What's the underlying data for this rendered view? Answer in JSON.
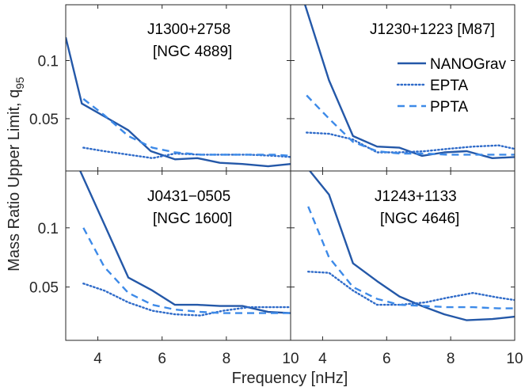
{
  "chart_data": {
    "type": "line",
    "layout": "2x2 panels, shared axes",
    "xlabel": "Frequency [nHz]",
    "ylabel_main": "Mass Ratio Upper Limit, q",
    "ylabel_sub": "95",
    "xlim": [
      3,
      10
    ],
    "ylim": [
      0.005,
      0.148
    ],
    "xticks": [
      4,
      6,
      8,
      10
    ],
    "xtick_labels": [
      "4",
      "6",
      "8",
      "10"
    ],
    "yticks": [
      0.05,
      0.1
    ],
    "ytick_labels": [
      "0.05",
      "0.1"
    ],
    "grid": false,
    "legend": {
      "placement": "top-right of upper-right panel",
      "entries": [
        {
          "name": "NANOGrav",
          "style": "solid"
        },
        {
          "name": "EPTA",
          "style": "dotted"
        },
        {
          "name": "PPTA",
          "style": "dashed"
        }
      ]
    },
    "colors": {
      "NANOGrav": "#2458a8",
      "EPTA": "#2f6bc9",
      "PPTA": "#3d8ae8"
    },
    "panels": [
      {
        "label_line1": "J1300+2758",
        "label_line2": "[NGC 4889]",
        "series": [
          {
            "name": "NANOGrav",
            "x": [
              3.0,
              3.5,
              4.2,
              4.95,
              5.65,
              6.4,
              7.1,
              7.8,
              8.5,
              9.3,
              10.0
            ],
            "y": [
              0.12,
              0.063,
              0.052,
              0.04,
              0.022,
              0.015,
              0.016,
              0.012,
              0.011,
              0.009,
              0.011
            ]
          },
          {
            "name": "EPTA",
            "x": [
              3.55,
              4.2,
              4.95,
              5.7,
              6.4,
              7.2,
              7.9,
              8.7,
              9.5,
              10.0
            ],
            "y": [
              0.025,
              0.022,
              0.019,
              0.016,
              0.02,
              0.019,
              0.019,
              0.019,
              0.018,
              0.017
            ]
          },
          {
            "name": "PPTA",
            "x": [
              3.55,
              4.2,
              4.95,
              5.7,
              6.4,
              7.2,
              7.9,
              8.7,
              9.5,
              10.0
            ],
            "y": [
              0.067,
              0.053,
              0.035,
              0.025,
              0.021,
              0.019,
              0.019,
              0.019,
              0.019,
              0.018
            ]
          }
        ]
      },
      {
        "label_line1": "J1230+1223 [M87]",
        "label_line2": "",
        "series": [
          {
            "name": "NANOGrav",
            "x": [
              3.45,
              4.2,
              4.95,
              5.7,
              6.4,
              7.1,
              7.8,
              8.5,
              9.3,
              10.0
            ],
            "y": [
              0.148,
              0.083,
              0.035,
              0.026,
              0.025,
              0.018,
              0.021,
              0.022,
              0.016,
              0.017
            ]
          },
          {
            "name": "EPTA",
            "x": [
              3.5,
              4.2,
              4.95,
              5.7,
              6.4,
              7.2,
              7.9,
              8.7,
              9.5,
              10.0
            ],
            "y": [
              0.038,
              0.037,
              0.032,
              0.021,
              0.021,
              0.022,
              0.024,
              0.026,
              0.027,
              0.024
            ]
          },
          {
            "name": "PPTA",
            "x": [
              3.5,
              4.2,
              4.95,
              5.7,
              6.4,
              7.2,
              7.9,
              8.7,
              9.5,
              10.0
            ],
            "y": [
              0.07,
              0.05,
              0.03,
              0.022,
              0.02,
              0.02,
              0.019,
              0.019,
              0.019,
              0.019
            ]
          }
        ]
      },
      {
        "label_line1": "J0431−0505",
        "label_line2": "[NGC 1600]",
        "series": [
          {
            "name": "NANOGrav",
            "x": [
              3.45,
              4.2,
              4.95,
              5.7,
              6.4,
              7.1,
              7.8,
              8.5,
              9.3,
              10.0
            ],
            "y": [
              0.148,
              0.103,
              0.058,
              0.047,
              0.035,
              0.035,
              0.034,
              0.034,
              0.029,
              0.028
            ]
          },
          {
            "name": "EPTA",
            "x": [
              3.55,
              4.2,
              4.95,
              5.7,
              6.4,
              7.2,
              7.9,
              8.7,
              9.5,
              10.0
            ],
            "y": [
              0.053,
              0.047,
              0.037,
              0.03,
              0.027,
              0.026,
              0.03,
              0.033,
              0.033,
              0.033
            ]
          },
          {
            "name": "PPTA",
            "x": [
              3.55,
              4.2,
              4.95,
              5.7,
              6.4,
              7.2,
              7.9,
              8.7,
              9.5,
              10.0
            ],
            "y": [
              0.1,
              0.067,
              0.045,
              0.035,
              0.031,
              0.029,
              0.028,
              0.028,
              0.028,
              0.028
            ]
          }
        ]
      },
      {
        "label_line1": "J1243+1133",
        "label_line2": "[NGC 4646]",
        "series": [
          {
            "name": "NANOGrav",
            "x": [
              3.6,
              4.2,
              4.95,
              5.7,
              6.4,
              7.1,
              7.8,
              8.5,
              9.3,
              10.0
            ],
            "y": [
              0.148,
              0.128,
              0.07,
              0.055,
              0.042,
              0.034,
              0.027,
              0.022,
              0.023,
              0.025
            ]
          },
          {
            "name": "EPTA",
            "x": [
              3.55,
              4.2,
              4.95,
              5.7,
              6.4,
              7.2,
              7.9,
              8.7,
              9.5,
              10.0
            ],
            "y": [
              0.063,
              0.062,
              0.047,
              0.035,
              0.035,
              0.037,
              0.041,
              0.045,
              0.041,
              0.039
            ]
          },
          {
            "name": "PPTA",
            "x": [
              3.55,
              4.2,
              4.95,
              5.7,
              6.4,
              7.2,
              7.9,
              8.7,
              9.5,
              10.0
            ],
            "y": [
              0.118,
              0.075,
              0.05,
              0.04,
              0.035,
              0.034,
              0.033,
              0.033,
              0.032,
              0.032
            ]
          }
        ]
      }
    ]
  }
}
